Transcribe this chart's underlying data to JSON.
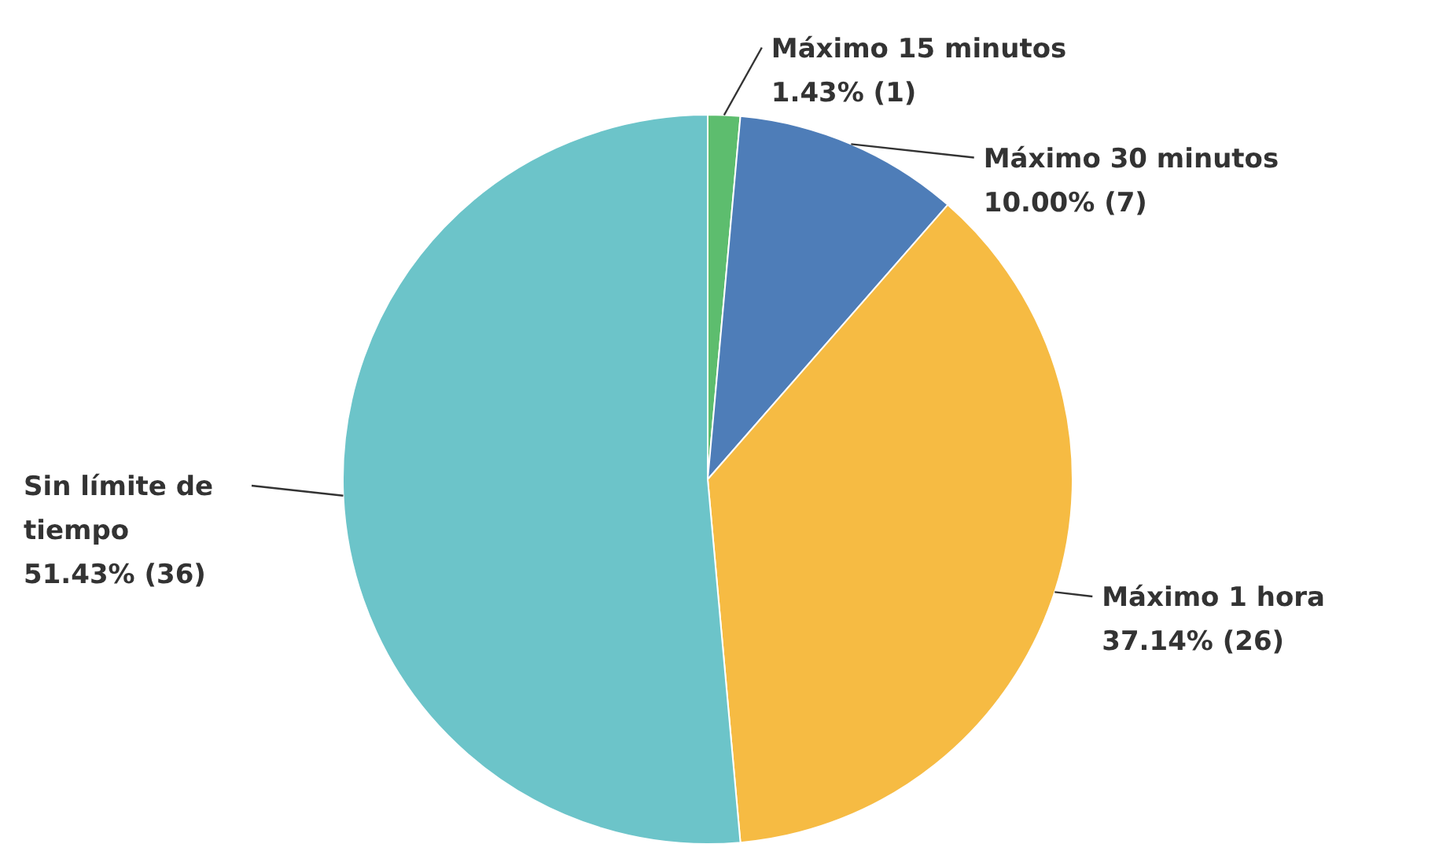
{
  "chart_data": {
    "type": "pie",
    "categories": [
      "Máximo 15 minutos",
      "Máximo 30 minutos",
      "Máximo 1 hora",
      "Sin límite de tiempo"
    ],
    "values": [
      1,
      7,
      26,
      36
    ],
    "value_labels": [
      "1.43% (1)",
      "10.00% (7)",
      "37.14% (26)",
      "51.43% (36)"
    ],
    "colors": [
      "#5dbd6e",
      "#4e7db8",
      "#f6bb43",
      "#6cc4c9"
    ]
  }
}
